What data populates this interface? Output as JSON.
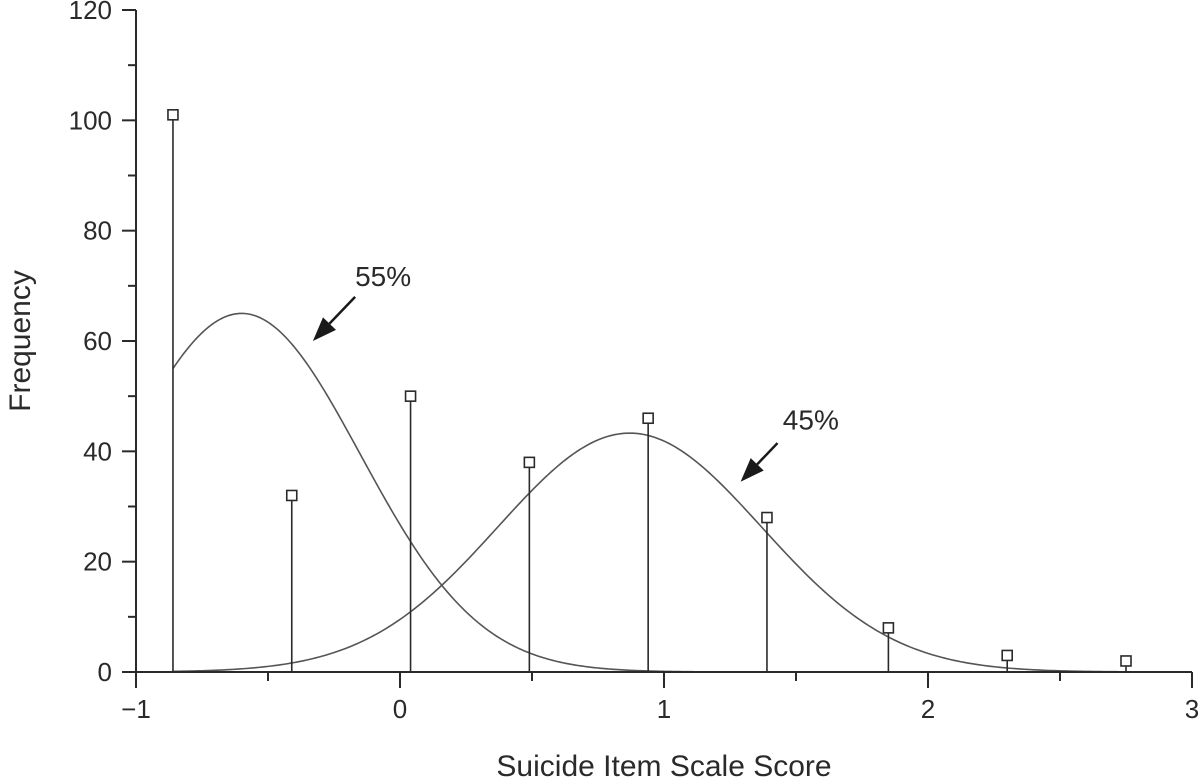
{
  "chart_data": {
    "type": "scatter",
    "xlabel": "Suicide Item Scale Score",
    "ylabel": "Frequency",
    "xlim": [
      -1,
      3
    ],
    "ylim": [
      0,
      120
    ],
    "x_ticks": [
      -1,
      0,
      1,
      2,
      3
    ],
    "x_tick_labels": [
      "−1",
      "0",
      "1",
      "2",
      "3"
    ],
    "x_minor_step": 0.5,
    "y_ticks": [
      0,
      20,
      40,
      60,
      80,
      100,
      120
    ],
    "y_tick_labels": [
      "0",
      "20",
      "40",
      "60",
      "80",
      "100",
      "120"
    ],
    "y_minor_step": 10,
    "grid": false,
    "stems": {
      "x": [
        -0.86,
        -0.41,
        0.04,
        0.49,
        0.94,
        1.39,
        1.85,
        2.3,
        2.75
      ],
      "y": [
        101,
        32,
        50,
        38,
        46,
        28,
        8,
        3,
        2
      ]
    },
    "curves": [
      {
        "mean": -0.6,
        "sd": 0.45,
        "peak": 65,
        "x_range": [
          -0.86,
          1.5
        ]
      },
      {
        "mean": 0.87,
        "sd": 0.5,
        "peak": 43.3,
        "x_range": [
          -0.86,
          2.75
        ]
      }
    ],
    "annotations": [
      {
        "text": "55%",
        "text_at": [
          -0.17,
          70
        ],
        "arrow_from": [
          -0.17,
          68
        ],
        "arrow_to": [
          -0.33,
          60
        ]
      },
      {
        "text": "45%",
        "text_at": [
          1.45,
          44
        ],
        "arrow_from": [
          1.43,
          41.5
        ],
        "arrow_to": [
          1.29,
          34.5
        ]
      }
    ]
  }
}
